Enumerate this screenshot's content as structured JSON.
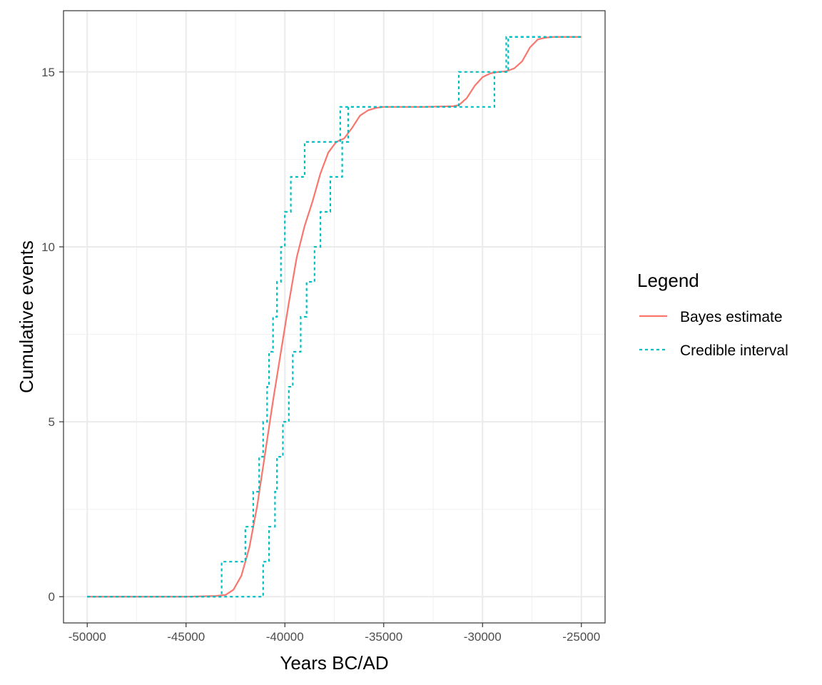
{
  "colors": {
    "bayes": "#F8766D",
    "credible": "#00BFC4",
    "grid_major": "#EBEBEB",
    "grid_minor": "#F2F2F2",
    "panel_border": "#333333",
    "tick_text": "#4D4D4D"
  },
  "chart_data": {
    "type": "line",
    "xlabel": "Years BC/AD",
    "ylabel": "Cumulative events",
    "xlim": [
      -51200,
      -23800
    ],
    "ylim": [
      -0.75,
      16.75
    ],
    "x_ticks": [
      -50000,
      -45000,
      -40000,
      -35000,
      -30000,
      -25000
    ],
    "x_tick_labels": [
      "-50000",
      "-45000",
      "-40000",
      "-35000",
      "-30000",
      "-25000"
    ],
    "y_ticks": [
      0,
      5,
      10,
      15
    ],
    "y_tick_labels": [
      "0",
      "5",
      "10",
      "15"
    ],
    "grid": true,
    "legend": {
      "title": "Legend",
      "position": "right",
      "entries": [
        {
          "label": "Bayes estimate",
          "style": "solid"
        },
        {
          "label": "Credible interval",
          "style": "dashed"
        }
      ]
    },
    "series": [
      {
        "name": "Bayes estimate",
        "style": "solid",
        "x": [
          -50000,
          -45000,
          -43500,
          -43000,
          -42600,
          -42200,
          -41800,
          -41400,
          -41000,
          -40600,
          -40200,
          -39800,
          -39400,
          -39000,
          -38600,
          -38200,
          -37800,
          -37400,
          -37000,
          -36600,
          -36200,
          -35800,
          -35400,
          -35000,
          -33000,
          -31500,
          -31200,
          -30800,
          -30400,
          -30000,
          -29600,
          -29200,
          -28800,
          -28400,
          -28000,
          -27600,
          -27200,
          -26800,
          -26400,
          -25000
        ],
        "y": [
          0,
          0,
          0.02,
          0.05,
          0.2,
          0.6,
          1.4,
          2.6,
          4.1,
          5.6,
          7.0,
          8.4,
          9.7,
          10.6,
          11.3,
          12.1,
          12.7,
          13.0,
          13.1,
          13.4,
          13.75,
          13.9,
          13.97,
          14.0,
          14.0,
          14.02,
          14.05,
          14.25,
          14.6,
          14.85,
          14.96,
          15.0,
          15.02,
          15.1,
          15.3,
          15.7,
          15.93,
          15.98,
          16.0,
          16.0
        ]
      },
      {
        "name": "Credible interval",
        "style": "dashed",
        "x": [
          -50000,
          -43200,
          -43200,
          -42000,
          -42000,
          -41600,
          -41600,
          -41300,
          -41300,
          -41100,
          -41100,
          -40900,
          -40900,
          -40800,
          -40800,
          -40600,
          -40600,
          -40400,
          -40400,
          -40200,
          -40200,
          -40000,
          -40000,
          -39700,
          -39700,
          -39000,
          -39000,
          -38500,
          -38500,
          -38000,
          -38000,
          -37200,
          -37200,
          -37000,
          -37000,
          -35200,
          -35200,
          -31200,
          -31200,
          -28800,
          -28800,
          -28800,
          -28800,
          -27300,
          -27300,
          -25000
        ],
        "y": [
          0,
          0,
          1,
          1,
          2,
          2,
          3,
          3,
          4,
          4,
          5,
          5,
          6,
          6,
          7,
          7,
          8,
          8,
          9,
          9,
          10,
          10,
          11,
          11,
          12,
          12,
          13,
          13,
          13,
          13,
          13,
          13,
          14,
          14,
          14,
          14,
          14,
          14,
          15,
          15,
          15,
          15,
          16,
          16,
          16,
          16
        ]
      },
      {
        "name": "",
        "style": "dashed",
        "x": [
          -50000,
          -41100,
          -41100,
          -40800,
          -40800,
          -40500,
          -40500,
          -40400,
          -40400,
          -40100,
          -40100,
          -39800,
          -39800,
          -39600,
          -39600,
          -39200,
          -39200,
          -38900,
          -38900,
          -38500,
          -38500,
          -38200,
          -38200,
          -37700,
          -37700,
          -37100,
          -37100,
          -36800,
          -36800,
          -29400,
          -29400,
          -28700,
          -28700,
          -25000
        ],
        "y": [
          0,
          0,
          1,
          1,
          2,
          2,
          3,
          3,
          4,
          4,
          5,
          5,
          6,
          6,
          7,
          7,
          8,
          8,
          9,
          9,
          10,
          10,
          11,
          11,
          12,
          12,
          13,
          13,
          14,
          14,
          15,
          15,
          16,
          16
        ]
      }
    ]
  }
}
